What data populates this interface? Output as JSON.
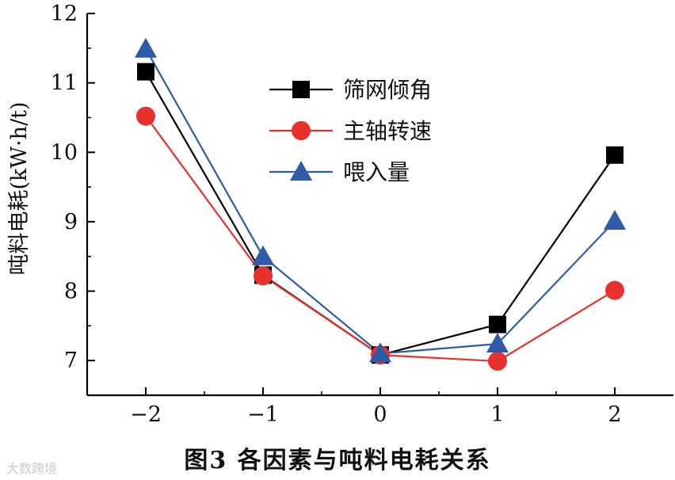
{
  "chart_data": {
    "type": "line",
    "ylabel": "吨料电耗(kW·h/t)",
    "xlabel": "",
    "x": [
      -2,
      -1,
      0,
      1,
      2
    ],
    "x_tick_labels": [
      "−2",
      "−1",
      "0",
      "1",
      "2"
    ],
    "y_ticks": [
      7,
      8,
      9,
      10,
      11,
      12
    ],
    "ylim": [
      6.5,
      12
    ],
    "xlim": [
      -2.5,
      2.5
    ],
    "legend_position": "top-center",
    "series": [
      {
        "name": "筛网倾角",
        "color": "#000000",
        "marker": "square",
        "values": [
          11.16,
          8.23,
          7.08,
          7.52,
          9.96
        ]
      },
      {
        "name": "主轴转速",
        "color": "#e8312d",
        "marker": "circle",
        "values": [
          10.52,
          8.22,
          7.08,
          6.99,
          8.01
        ]
      },
      {
        "name": "喂入量",
        "color": "#2f5ba9",
        "marker": "triangle",
        "values": [
          11.49,
          8.5,
          7.1,
          7.24,
          9.01
        ]
      }
    ]
  },
  "caption": "图3   各因素与吨料电耗关系",
  "watermark": "大数跨境"
}
